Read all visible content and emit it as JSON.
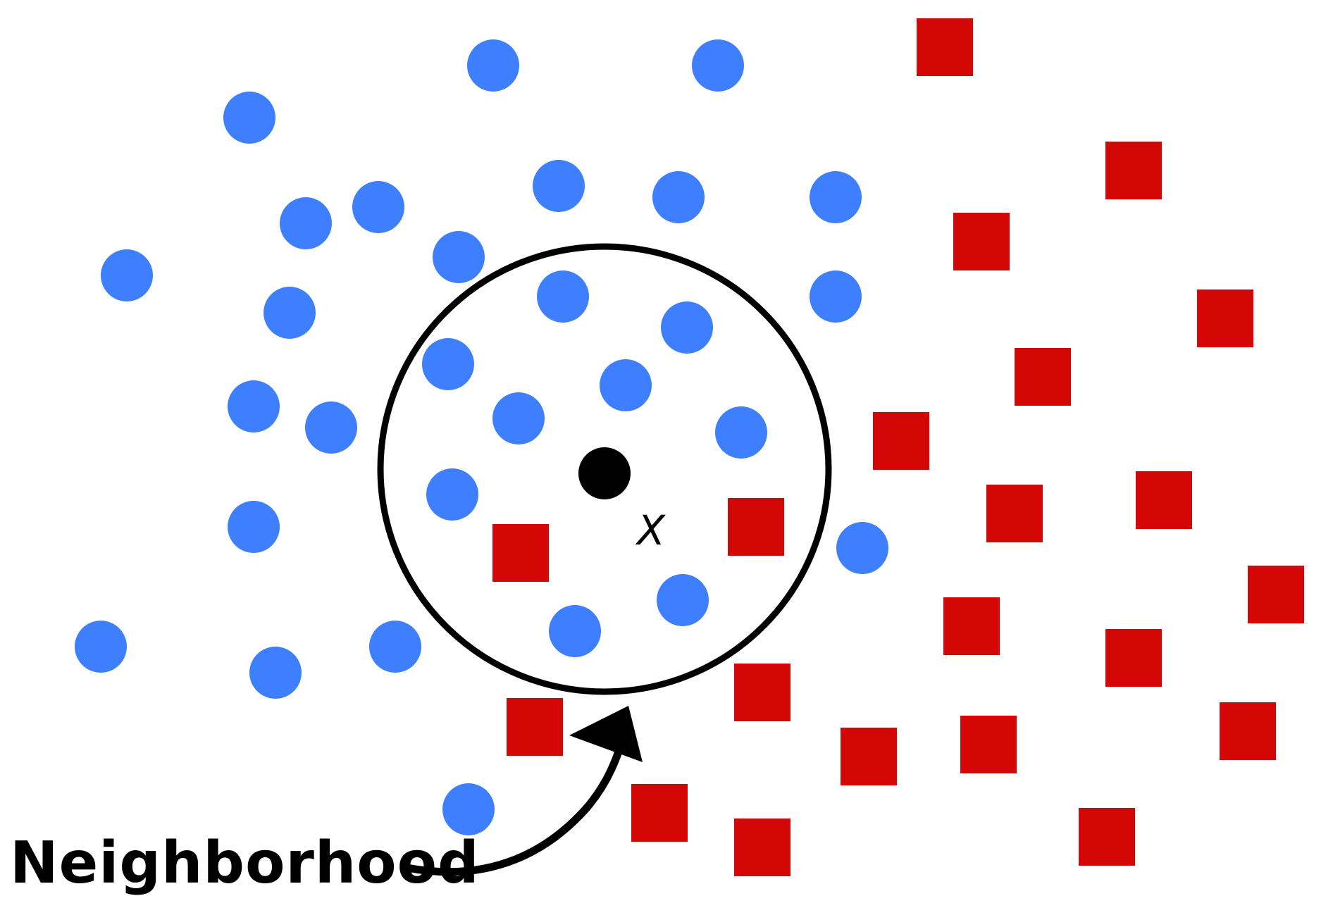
{
  "diagram": {
    "query_point_label": "X",
    "neighborhood_label": "Neighborhood",
    "colors": {
      "class_a": "#3d7fff",
      "class_b": "#d40606",
      "query": "#000000",
      "outline": "#000000"
    },
    "marker_shapes": {
      "class_a": "circle",
      "class_b": "square"
    }
  }
}
